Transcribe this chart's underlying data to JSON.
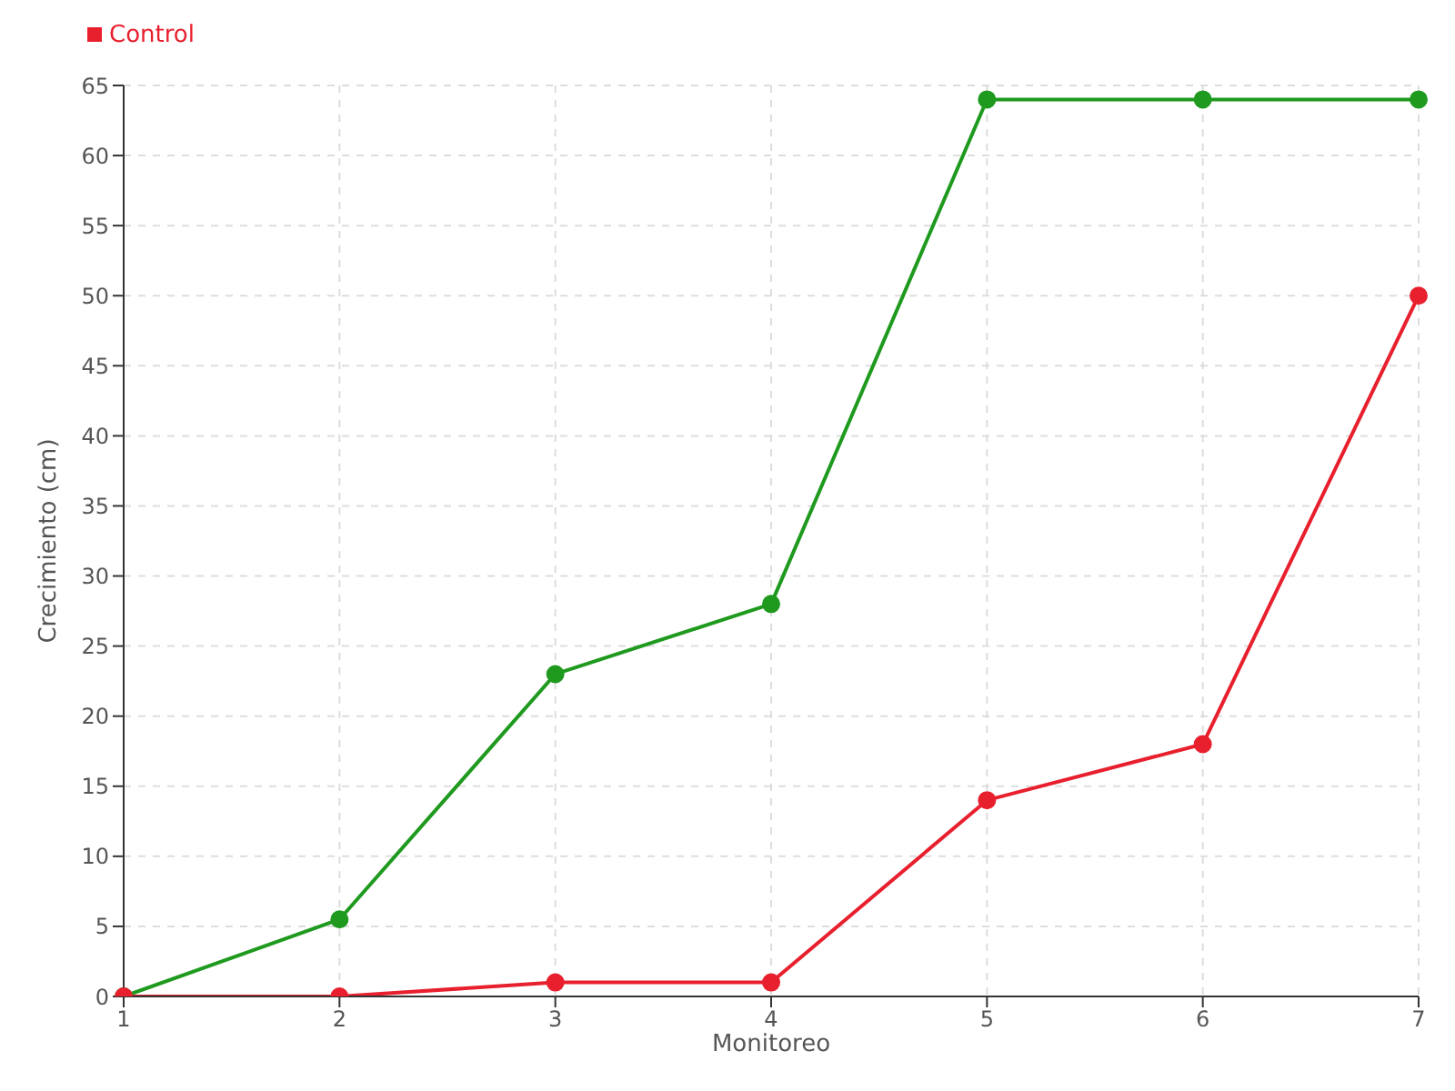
{
  "chart_data": {
    "type": "line",
    "xlabel": "Monitoreo",
    "ylabel": "Crecimiento (cm)",
    "categories": [
      "1",
      "2",
      "3",
      "4",
      "5",
      "6",
      "7"
    ],
    "series": [
      {
        "color": "#1f9a1f",
        "values": [
          0,
          5.5,
          23,
          28,
          64,
          64,
          64
        ]
      },
      {
        "name": "Control",
        "color": "#e8202e",
        "values": [
          0,
          0,
          1,
          1,
          14,
          18,
          50
        ]
      }
    ],
    "ylim": [
      0,
      65
    ],
    "yticks": [
      0,
      5,
      10,
      15,
      20,
      25,
      30,
      35,
      40,
      45,
      50,
      55,
      60,
      65
    ],
    "grid": true,
    "legend": "top left",
    "marker": "circle",
    "line_style": "solid"
  }
}
